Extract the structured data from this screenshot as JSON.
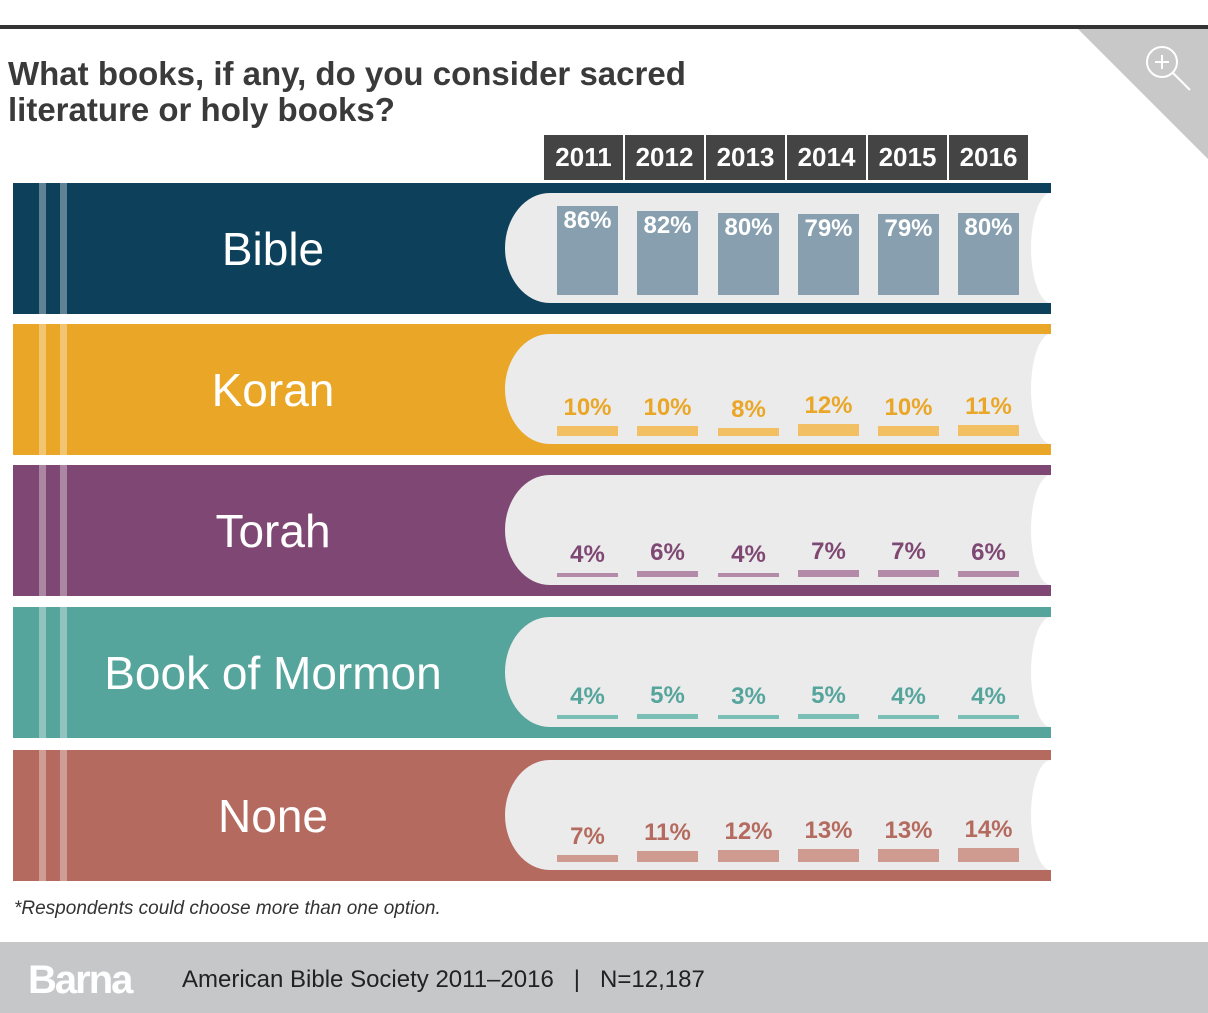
{
  "chart_data": {
    "type": "bar",
    "title": "What books, if any, do you consider sacred literature or holy books?",
    "categories": [
      "2011",
      "2012",
      "2013",
      "2014",
      "2015",
      "2016"
    ],
    "ylim": [
      0,
      100
    ],
    "series": [
      {
        "name": "Bible",
        "values": [
          86,
          82,
          80,
          79,
          79,
          80
        ],
        "labels": [
          "86%",
          "82%",
          "80%",
          "79%",
          "79%",
          "80%"
        ],
        "color": "#0d405b",
        "bar_color": "#879fae",
        "label_color": "#ffffff"
      },
      {
        "name": "Koran",
        "values": [
          10,
          10,
          8,
          12,
          10,
          11
        ],
        "labels": [
          "10%",
          "10%",
          "8%",
          "12%",
          "10%",
          "11%"
        ],
        "color": "#eaa626",
        "bar_color": "#f2c062",
        "label_color": "#eaa626"
      },
      {
        "name": "Torah",
        "values": [
          4,
          6,
          4,
          7,
          7,
          6
        ],
        "labels": [
          "4%",
          "6%",
          "4%",
          "7%",
          "7%",
          "6%"
        ],
        "color": "#7f4773",
        "bar_color": "#b48aa9",
        "label_color": "#7f4773"
      },
      {
        "name": "Book of Mormon",
        "values": [
          4,
          5,
          3,
          5,
          4,
          4
        ],
        "labels": [
          "4%",
          "5%",
          "3%",
          "5%",
          "4%",
          "4%"
        ],
        "color": "#56a59d",
        "bar_color": "#79bfb6",
        "label_color": "#56a59d"
      },
      {
        "name": "None",
        "values": [
          7,
          11,
          12,
          13,
          13,
          14
        ],
        "labels": [
          "7%",
          "11%",
          "12%",
          "13%",
          "13%",
          "14%"
        ],
        "color": "#b46a5e",
        "bar_color": "#cf9a8f",
        "label_color": "#b46a5e"
      }
    ]
  },
  "footnote": "*Respondents could choose more than one option.",
  "footer": {
    "logo": "Barna",
    "source": "American Bible Society 2011–2016   |   N=12,187"
  }
}
